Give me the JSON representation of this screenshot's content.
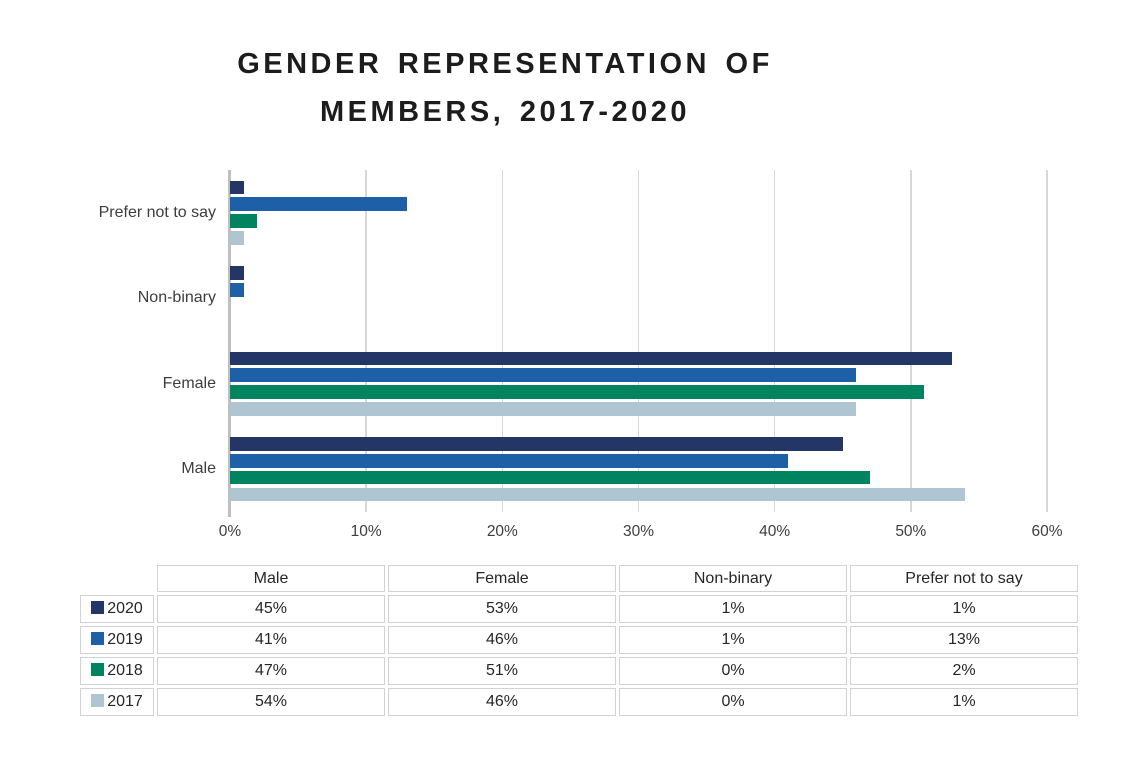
{
  "title": {
    "line1": "GENDER REPRESENTATION OF",
    "line2": "MEMBERS, 2017-2020"
  },
  "chart_data": {
    "type": "bar",
    "orientation": "horizontal",
    "title": "GENDER REPRESENTATION OF MEMBERS, 2017-2020",
    "categories_top_to_bottom": [
      "Prefer not to say",
      "Non-binary",
      "Female",
      "Male"
    ],
    "x_tick_labels": [
      "0%",
      "10%",
      "20%",
      "30%",
      "40%",
      "50%",
      "60%"
    ],
    "xlim": [
      0,
      60
    ],
    "grid": true,
    "unit": "percent",
    "series": [
      {
        "name": "2020",
        "color": "#243665",
        "values": [
          1,
          1,
          53,
          45
        ]
      },
      {
        "name": "2019",
        "color": "#1e60a8",
        "values": [
          13,
          1,
          46,
          41
        ]
      },
      {
        "name": "2018",
        "color": "#00835f",
        "values": [
          2,
          0,
          51,
          47
        ]
      },
      {
        "name": "2017",
        "color": "#afc5d2",
        "values": [
          1,
          0,
          46,
          54
        ]
      }
    ]
  },
  "table": {
    "columns": [
      "Male",
      "Female",
      "Non-binary",
      "Prefer not to say"
    ],
    "rows": [
      {
        "year": "2020",
        "swatch_color": "#243665",
        "values": [
          "45%",
          "53%",
          "1%",
          "1%"
        ]
      },
      {
        "year": "2019",
        "swatch_color": "#1e60a8",
        "values": [
          "41%",
          "46%",
          "1%",
          "13%"
        ]
      },
      {
        "year": "2018",
        "swatch_color": "#00835f",
        "values": [
          "47%",
          "51%",
          "0%",
          "2%"
        ]
      },
      {
        "year": "2017",
        "swatch_color": "#afc5d2",
        "values": [
          "54%",
          "46%",
          "0%",
          "1%"
        ]
      }
    ]
  },
  "colors": {
    "gridline": "#d7d7d7",
    "axis_line": "#bfbfbf",
    "axis_text": "#3d3d3d",
    "title_text": "#1c1c1c",
    "table_border": "#d2d2d2"
  }
}
